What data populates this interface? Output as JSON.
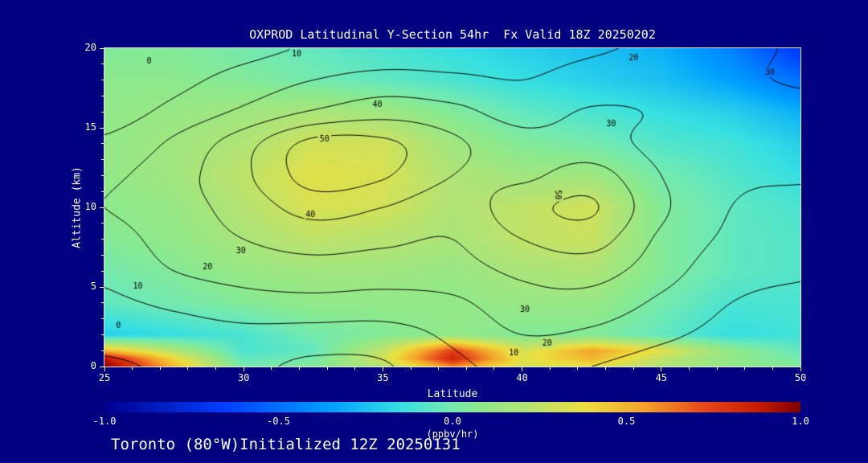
{
  "window": {
    "background": "#000080",
    "frame_color": "#e8e8e8"
  },
  "chart_data": {
    "type": "heatmap",
    "title": "OXPROD Latitudinal Y-Section 54hr  Fx Valid 18Z 20250202",
    "xlabel": "Latitude",
    "ylabel": "Altitude (km)",
    "footer": "Toronto (80°W)Initialized 12Z 20250131",
    "x_range": [
      25,
      50
    ],
    "y_range": [
      0,
      20
    ],
    "x_ticks": [
      25,
      30,
      35,
      40,
      45,
      50
    ],
    "y_ticks": [
      0,
      5,
      10,
      15,
      20
    ],
    "x_minor_step": 1,
    "y_minor_step": 1,
    "contour_color": "#000000",
    "colorbar": {
      "label": "(ppbv/hr)",
      "range": [
        -1.0,
        1.0
      ],
      "ticks": [
        "-1.0",
        "-0.5",
        "0.0",
        "0.5",
        "1.0"
      ],
      "stops": [
        {
          "v": -1.0,
          "color": "#000090"
        },
        {
          "v": -0.65,
          "color": "#0040ff"
        },
        {
          "v": -0.35,
          "color": "#00a0ff"
        },
        {
          "v": -0.15,
          "color": "#35dfe2"
        },
        {
          "v": -0.02,
          "color": "#6fe9b5"
        },
        {
          "v": 0.08,
          "color": "#8ce98c"
        },
        {
          "v": 0.22,
          "color": "#b6e372"
        },
        {
          "v": 0.38,
          "color": "#ecdf3e"
        },
        {
          "v": 0.55,
          "color": "#f4a42a"
        },
        {
          "v": 0.72,
          "color": "#e8491c"
        },
        {
          "v": 0.88,
          "color": "#c61c00"
        },
        {
          "v": 1.0,
          "color": "#7e0000"
        }
      ]
    },
    "fill_field": {
      "units": "ppbv/hr",
      "lats": [
        25,
        27.5,
        30,
        32.5,
        35,
        37.5,
        40,
        42.5,
        45,
        47.5,
        50
      ],
      "alts": [
        0,
        0.5,
        1,
        2,
        4,
        6,
        8,
        10,
        12,
        14,
        16,
        18,
        20
      ],
      "values": [
        [
          1.0,
          0.5,
          0.0,
          0.05,
          0.2,
          0.6,
          0.3,
          0.35,
          0.2,
          0.1,
          0.05
        ],
        [
          0.9,
          0.4,
          -0.05,
          0.0,
          0.3,
          0.85,
          0.35,
          0.5,
          0.25,
          0.1,
          0.0
        ],
        [
          0.5,
          0.2,
          -0.1,
          -0.05,
          0.25,
          0.75,
          0.3,
          0.55,
          0.35,
          0.1,
          -0.05
        ],
        [
          -0.2,
          -0.15,
          -0.1,
          0.0,
          0.05,
          0.1,
          0.05,
          0.05,
          -0.05,
          -0.15,
          -0.12
        ],
        [
          -0.05,
          0.0,
          0.05,
          0.1,
          0.1,
          0.1,
          0.12,
          0.12,
          0.0,
          -0.1,
          -0.1
        ],
        [
          0.0,
          0.05,
          0.12,
          0.15,
          0.15,
          0.12,
          0.18,
          0.2,
          0.05,
          -0.05,
          -0.08
        ],
        [
          0.05,
          0.1,
          0.18,
          0.25,
          0.22,
          0.18,
          0.25,
          0.28,
          0.05,
          -0.05,
          -0.08
        ],
        [
          0.08,
          0.12,
          0.22,
          0.32,
          0.3,
          0.2,
          0.25,
          0.3,
          0.05,
          -0.05,
          -0.1
        ],
        [
          0.1,
          0.15,
          0.25,
          0.35,
          0.32,
          0.2,
          0.15,
          0.15,
          0.0,
          -0.08,
          -0.15
        ],
        [
          0.1,
          0.15,
          0.2,
          0.3,
          0.3,
          0.15,
          0.05,
          0.0,
          -0.08,
          -0.12,
          -0.2
        ],
        [
          0.1,
          0.12,
          0.15,
          0.18,
          0.15,
          0.05,
          -0.05,
          -0.1,
          -0.15,
          -0.2,
          -0.3
        ],
        [
          0.08,
          0.08,
          0.05,
          0.0,
          -0.05,
          -0.1,
          -0.15,
          -0.2,
          -0.25,
          -0.35,
          -0.5
        ],
        [
          0.05,
          0.05,
          0.0,
          -0.05,
          -0.1,
          -0.15,
          -0.2,
          -0.25,
          -0.3,
          -0.45,
          -0.7
        ]
      ]
    },
    "contour_field": {
      "levels": [
        0,
        10,
        20,
        30,
        40,
        50
      ],
      "lats": [
        25,
        27.5,
        30,
        32.5,
        35,
        37.5,
        40,
        42.5,
        45,
        47.5,
        50
      ],
      "alts": [
        0,
        2,
        4,
        6,
        8,
        10,
        12,
        14,
        16,
        18,
        20
      ],
      "values": [
        [
          -1,
          1,
          2,
          -2,
          -1,
          8,
          12,
          10,
          6,
          3,
          2
        ],
        [
          3,
          5,
          7,
          6,
          6,
          12,
          20,
          18,
          12,
          7,
          5
        ],
        [
          8,
          12,
          16,
          17,
          16,
          18,
          26,
          26,
          18,
          10,
          8
        ],
        [
          12,
          20,
          24,
          26,
          25,
          26,
          32,
          34,
          24,
          14,
          11
        ],
        [
          16,
          24,
          30,
          34,
          32,
          30,
          40,
          44,
          28,
          18,
          14
        ],
        [
          20,
          26,
          34,
          44,
          40,
          34,
          46,
          51,
          32,
          20,
          17
        ],
        [
          18,
          26,
          38,
          54,
          51,
          40,
          38,
          44,
          30,
          22,
          21
        ],
        [
          12,
          22,
          36,
          53,
          52,
          42,
          34,
          34,
          27,
          22,
          23
        ],
        [
          5,
          13,
          22,
          31,
          36,
          33,
          26,
          31,
          29,
          24,
          26
        ],
        [
          2,
          7,
          14,
          20,
          24,
          22,
          20,
          24,
          26,
          28,
          31
        ],
        [
          0,
          3,
          7,
          11,
          13,
          15,
          17,
          19,
          22,
          27,
          31
        ]
      ],
      "labels": [
        {
          "v": "0",
          "lat": 26.6,
          "alt": 19.2
        },
        {
          "v": "10",
          "lat": 31.9,
          "alt": 19.7
        },
        {
          "v": "20",
          "lat": 44.0,
          "alt": 19.4
        },
        {
          "v": "30",
          "lat": 48.9,
          "alt": 18.5
        },
        {
          "v": "30",
          "lat": 43.2,
          "alt": 15.3
        },
        {
          "v": "40",
          "lat": 34.8,
          "alt": 16.5
        },
        {
          "v": "50",
          "lat": 32.9,
          "alt": 14.3
        },
        {
          "v": "40",
          "lat": 32.4,
          "alt": 9.6
        },
        {
          "v": "30",
          "lat": 29.9,
          "alt": 7.3
        },
        {
          "v": "20",
          "lat": 28.7,
          "alt": 6.3
        },
        {
          "v": "10",
          "lat": 26.2,
          "alt": 5.1
        },
        {
          "v": "0",
          "lat": 25.5,
          "alt": 2.6
        },
        {
          "v": "50",
          "lat": 41.3,
          "alt": 10.8,
          "rot": 90
        },
        {
          "v": "30",
          "lat": 40.1,
          "alt": 3.6
        },
        {
          "v": "20",
          "lat": 40.9,
          "alt": 1.5
        },
        {
          "v": "10",
          "lat": 39.7,
          "alt": 0.9
        }
      ]
    }
  }
}
